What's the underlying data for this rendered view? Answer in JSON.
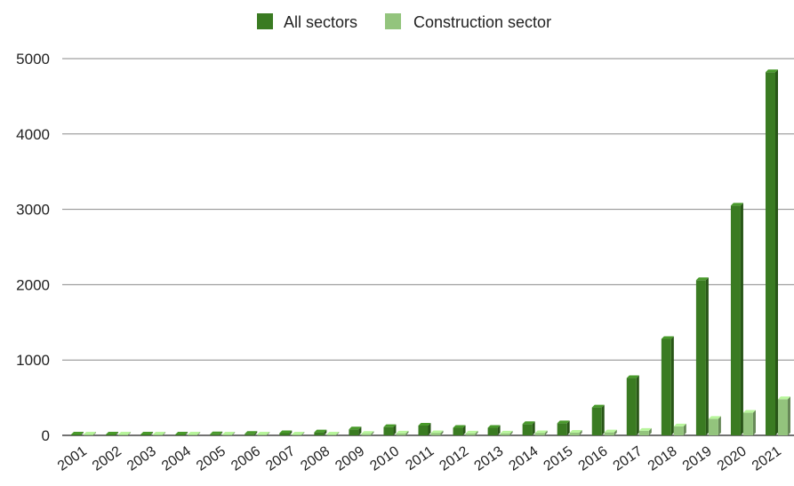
{
  "chart_data": {
    "type": "bar",
    "title": "",
    "xlabel": "",
    "ylabel": "",
    "ylim": [
      0,
      5000
    ],
    "yticks": [
      0,
      1000,
      2000,
      3000,
      4000,
      5000
    ],
    "grid": true,
    "legend_position": "top-center",
    "categories": [
      "2001",
      "2002",
      "2003",
      "2004",
      "2005",
      "2006",
      "2007",
      "2008",
      "2009",
      "2010",
      "2011",
      "2012",
      "2013",
      "2014",
      "2015",
      "2016",
      "2017",
      "2018",
      "2019",
      "2020",
      "2021"
    ],
    "series": [
      {
        "name": "All sectors",
        "color": "#3a7b22",
        "values": [
          5,
          5,
          5,
          5,
          15,
          20,
          30,
          40,
          80,
          110,
          130,
          100,
          100,
          150,
          160,
          370,
          760,
          1280,
          2060,
          3050,
          4820
        ]
      },
      {
        "name": "Construction sector",
        "color": "#93c47d",
        "values": [
          2,
          2,
          2,
          2,
          5,
          5,
          8,
          10,
          20,
          25,
          30,
          25,
          25,
          30,
          35,
          40,
          60,
          120,
          220,
          300,
          480
        ]
      }
    ]
  }
}
